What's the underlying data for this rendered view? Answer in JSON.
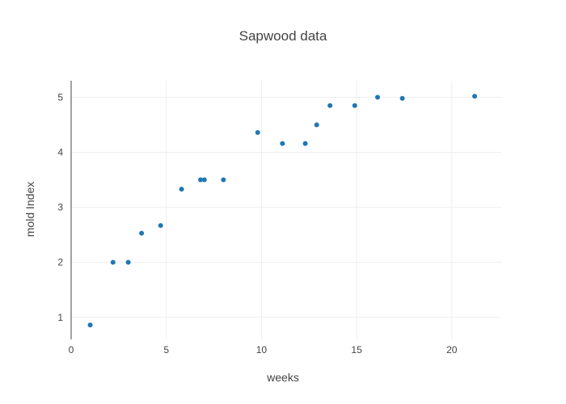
{
  "chart_data": {
    "type": "scatter",
    "title": "Sapwood data",
    "xlabel": "weeks",
    "ylabel": "mold Index",
    "xlim": [
      0,
      22.6
    ],
    "ylim": [
      0.6,
      5.3
    ],
    "x_ticks": [
      0,
      5,
      10,
      15,
      20
    ],
    "y_ticks": [
      1,
      2,
      3,
      4,
      5
    ],
    "grid": true,
    "marker_color": "#1f77b4",
    "series": [
      {
        "x": [
          1.0,
          2.2,
          3.0,
          3.7,
          4.7,
          5.8,
          6.8,
          7.0,
          8.0,
          9.8,
          11.1,
          12.3,
          12.9,
          13.6,
          14.9,
          16.1,
          17.4,
          21.2
        ],
        "y": [
          0.86,
          2.0,
          2.0,
          2.53,
          2.67,
          3.33,
          3.5,
          3.5,
          3.5,
          4.36,
          4.16,
          4.16,
          4.5,
          4.85,
          4.85,
          5.0,
          4.98,
          5.02
        ]
      }
    ]
  }
}
